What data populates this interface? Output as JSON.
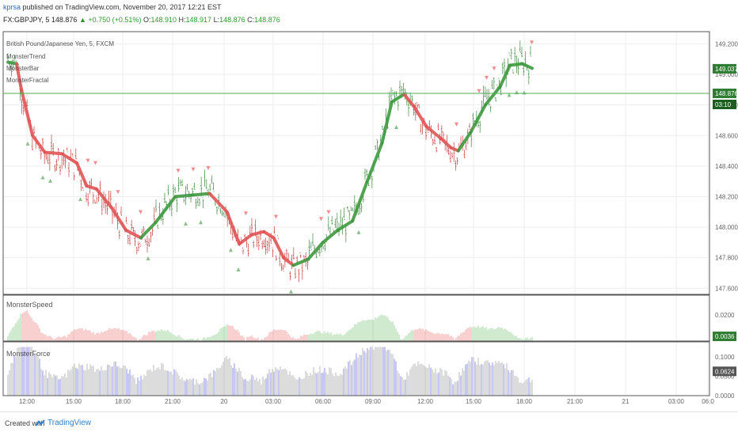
{
  "header": {
    "username": "kprsa",
    "published_text": "published on TradingView.com, November 20, 2017 12:21 EST",
    "symbol": "FX:GBPJPY, 5",
    "last": "148.876",
    "change": "+0.750 (+0.51%)",
    "o_label": "O:",
    "o_val": "148.910",
    "h_label": "H:",
    "h_val": "148.917",
    "l_label": "L:",
    "l_val": "148.876",
    "c_label": "C:",
    "c_val": "148.876"
  },
  "legend": {
    "title": "British Pound/Japanese Yen, 5, FXCM",
    "items": [
      "MonsterTrend",
      "MonsterBar",
      "MonsterFractal"
    ]
  },
  "colors": {
    "up": "#3f9a3f",
    "down": "#e25555",
    "force_bar": "#b8b8b8",
    "force_blue": "#8f8fe8",
    "hline": "#4caf50"
  },
  "panes": {
    "speed_title": "MonsterSpeed",
    "force_title": "MonsterForce",
    "price_badge": "149.037",
    "last_badge": "148.876",
    "timer_badge": "03:10",
    "speed_badge": "0.0036",
    "force_badge": "0.0624"
  },
  "footer": {
    "created": "Created with",
    "brand": "TradingView"
  },
  "chart_data": [
    {
      "type": "line",
      "title": "British Pound/Japanese Yen, 5, FXCM",
      "series_name": "MonsterTrend",
      "y_ticks": [
        147.6,
        147.8,
        148.0,
        148.2,
        148.4,
        148.6,
        148.8,
        149.0,
        149.2
      ],
      "y_tick_labels": [
        "147.600",
        "147.800",
        "148.000",
        "148.200",
        "148.400",
        "148.600",
        "148.800",
        "149.000",
        "149.200"
      ],
      "ylim": [
        147.56,
        149.28
      ],
      "x_tick_labels": [
        "12:00",
        "15:00",
        "18:00",
        "21:00",
        "20",
        "03:00",
        "06:00",
        "09:00",
        "12:00",
        "15:00",
        "18:00",
        "21:00",
        "21",
        "03:00",
        "06:0"
      ],
      "trend": [
        {
          "t": 0,
          "v": 149.08,
          "dir": "up"
        },
        {
          "t": 0.35,
          "v": 149.07,
          "dir": "up"
        },
        {
          "t": 0.55,
          "v": 148.9,
          "dir": "down"
        },
        {
          "t": 1.0,
          "v": 148.6,
          "dir": "down"
        },
        {
          "t": 1.5,
          "v": 148.49,
          "dir": "down"
        },
        {
          "t": 2.2,
          "v": 148.48,
          "dir": "down"
        },
        {
          "t": 2.8,
          "v": 148.42,
          "dir": "down"
        },
        {
          "t": 3.2,
          "v": 148.27,
          "dir": "down"
        },
        {
          "t": 3.6,
          "v": 148.25,
          "dir": "down"
        },
        {
          "t": 4.2,
          "v": 148.13,
          "dir": "down"
        },
        {
          "t": 4.8,
          "v": 147.98,
          "dir": "down"
        },
        {
          "t": 5.4,
          "v": 147.93,
          "dir": "down"
        },
        {
          "t": 6.0,
          "v": 148.03,
          "dir": "up"
        },
        {
          "t": 6.8,
          "v": 148.2,
          "dir": "up"
        },
        {
          "t": 7.5,
          "v": 148.21,
          "dir": "up"
        },
        {
          "t": 8.2,
          "v": 148.22,
          "dir": "up"
        },
        {
          "t": 8.9,
          "v": 148.1,
          "dir": "down"
        },
        {
          "t": 9.4,
          "v": 147.89,
          "dir": "down"
        },
        {
          "t": 9.9,
          "v": 147.95,
          "dir": "down"
        },
        {
          "t": 10.4,
          "v": 147.97,
          "dir": "down"
        },
        {
          "t": 10.8,
          "v": 147.93,
          "dir": "down"
        },
        {
          "t": 11.2,
          "v": 147.8,
          "dir": "down"
        },
        {
          "t": 11.6,
          "v": 147.75,
          "dir": "down"
        },
        {
          "t": 12.2,
          "v": 147.79,
          "dir": "up"
        },
        {
          "t": 12.8,
          "v": 147.9,
          "dir": "up"
        },
        {
          "t": 13.4,
          "v": 147.98,
          "dir": "up"
        },
        {
          "t": 14.0,
          "v": 148.04,
          "dir": "up"
        },
        {
          "t": 14.6,
          "v": 148.3,
          "dir": "up"
        },
        {
          "t": 15.2,
          "v": 148.55,
          "dir": "up"
        },
        {
          "t": 15.6,
          "v": 148.82,
          "dir": "up"
        },
        {
          "t": 16.1,
          "v": 148.87,
          "dir": "up"
        },
        {
          "t": 16.5,
          "v": 148.79,
          "dir": "down"
        },
        {
          "t": 17.0,
          "v": 148.66,
          "dir": "down"
        },
        {
          "t": 17.6,
          "v": 148.58,
          "dir": "down"
        },
        {
          "t": 18.0,
          "v": 148.52,
          "dir": "down"
        },
        {
          "t": 18.3,
          "v": 148.5,
          "dir": "down"
        },
        {
          "t": 18.8,
          "v": 148.62,
          "dir": "up"
        },
        {
          "t": 19.4,
          "v": 148.8,
          "dir": "up"
        },
        {
          "t": 20.0,
          "v": 148.92,
          "dir": "up"
        },
        {
          "t": 20.4,
          "v": 149.06,
          "dir": "up"
        },
        {
          "t": 20.9,
          "v": 149.07,
          "dir": "up"
        },
        {
          "t": 21.3,
          "v": 149.04,
          "dir": "up"
        }
      ]
    },
    {
      "type": "bar",
      "title": "MonsterSpeed",
      "y_tick_labels": [
        "0.0200"
      ],
      "ylim": [
        0,
        0.034
      ],
      "last": 0.0036
    },
    {
      "type": "bar",
      "title": "MonsterForce",
      "y_tick_labels": [
        "0.1000",
        "0.0500",
        "0.0000"
      ],
      "ylim": [
        0,
        0.13
      ],
      "last": 0.0624
    }
  ]
}
